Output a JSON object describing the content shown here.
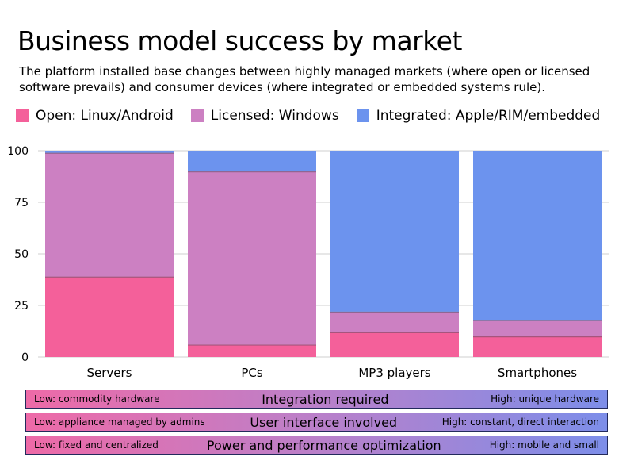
{
  "title": "Business model success by market",
  "subtitle": "The platform installed base changes between highly managed markets (where open or licensed software prevails) and consumer devices (where integrated or embedded systems rule).",
  "colors": {
    "open": "#f4609a",
    "licensed": "#cc80c2",
    "integrated": "#6c93ee",
    "grid": "#cfcfcf",
    "band_border": "#232a5c"
  },
  "legend": [
    {
      "label": "Open: Linux/Android",
      "color": "#f4609a"
    },
    {
      "label": "Licensed: Windows",
      "color": "#cc80c2"
    },
    {
      "label": "Integrated: Apple/RIM/embedded",
      "color": "#6c93ee"
    }
  ],
  "chart_data": {
    "type": "bar",
    "stacked": true,
    "categories": [
      "Servers",
      "PCs",
      "MP3 players",
      "Smartphones"
    ],
    "series": [
      {
        "name": "Open: Linux/Android",
        "values": [
          39,
          6,
          12,
          10
        ]
      },
      {
        "name": "Licensed: Windows",
        "values": [
          60,
          84,
          10,
          8
        ]
      },
      {
        "name": "Integrated: Apple/RIM/embedded",
        "values": [
          1,
          10,
          78,
          82
        ]
      }
    ],
    "ylim": [
      0,
      100
    ],
    "yticks": [
      0,
      25,
      50,
      75,
      100
    ],
    "grid": true,
    "legend_position": "top",
    "title": "Business model success by market",
    "xlabel": "",
    "ylabel": ""
  },
  "bands": [
    {
      "low": "Low: commodity hardware",
      "title": "Integration required",
      "high": "High: unique hardware"
    },
    {
      "low": "Low: appliance managed by admins",
      "title": "User interface involved",
      "high": "High: constant, direct interaction"
    },
    {
      "low": "Low: fixed and centralized",
      "title": "Power and performance optimization",
      "high": "High: mobile and small"
    }
  ]
}
